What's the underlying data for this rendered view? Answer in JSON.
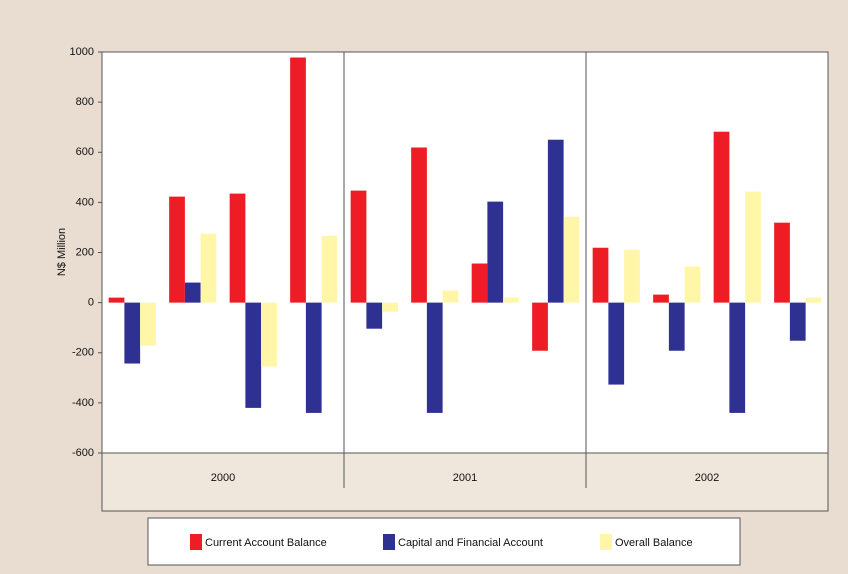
{
  "chart_data": {
    "type": "bar",
    "y_label": "N$ Million",
    "categories": [
      null,
      null,
      null,
      null,
      null,
      null,
      null,
      null,
      null,
      null,
      null,
      null
    ],
    "groups": [
      "2000",
      "2001",
      "2002"
    ],
    "series": [
      {
        "name": "Current Account Balance",
        "color": "#ee1c24",
        "values": [
          20,
          423,
          435,
          978,
          447,
          619,
          156,
          -192,
          219,
          32,
          682,
          319
        ]
      },
      {
        "name": "Capital and Financial Account",
        "color": "#2e3192",
        "values": [
          -243,
          80,
          -420,
          -440,
          -104,
          -440,
          403,
          650,
          -327,
          -192,
          -440,
          -152
        ]
      },
      {
        "name": "Overall Balance",
        "color": "#fff6a8",
        "values": [
          -172,
          275,
          -255,
          267,
          -36,
          48,
          20,
          343,
          211,
          144,
          443,
          20
        ]
      }
    ],
    "ylim": [
      -600,
      1000
    ],
    "yticks": [
      -600,
      -400,
      -200,
      0,
      200,
      400,
      600,
      800,
      1000
    ]
  }
}
